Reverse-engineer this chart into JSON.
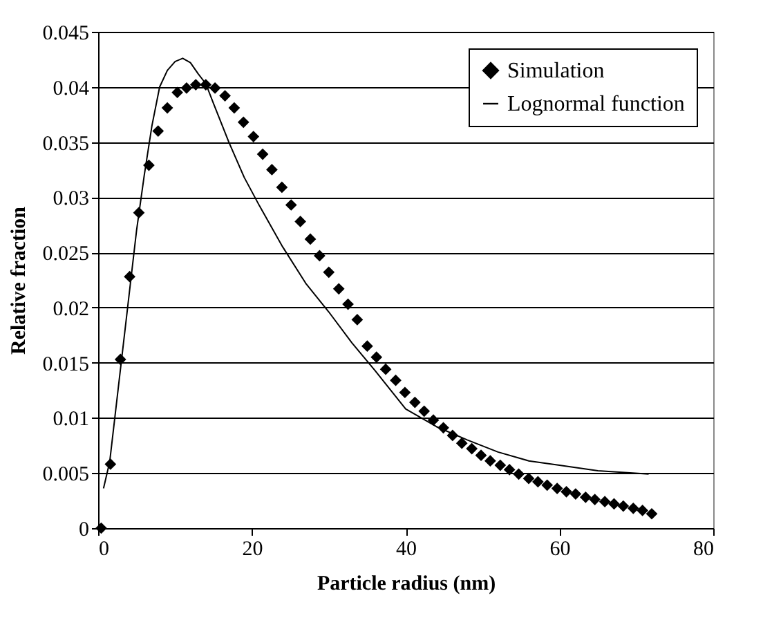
{
  "chart_data": {
    "type": "scatter",
    "xlabel": "Particle radius (nm)",
    "ylabel": "Relative fraction",
    "xlim": [
      0,
      80
    ],
    "xticks": [
      0,
      20,
      40,
      60,
      80
    ],
    "ylim": [
      0,
      0.045
    ],
    "yticks": [
      0,
      0.005,
      0.01,
      0.015,
      0.02,
      0.025,
      0.03,
      0.035,
      0.04,
      0.045
    ],
    "grid": "y",
    "legend": "top right",
    "series": [
      {
        "name": "Simulation",
        "marker": "diamond",
        "color": "#000000",
        "x": [
          0.4,
          1.6,
          2.9,
          4.1,
          5.3,
          6.6,
          7.8,
          9.0,
          10.3,
          11.5,
          12.7,
          14.0,
          15.2,
          16.5,
          17.7,
          18.9,
          20.2,
          21.4,
          22.6,
          23.9,
          25.1,
          26.3,
          27.6,
          28.8,
          30.0,
          31.3,
          32.5,
          33.7,
          35.0,
          36.2,
          37.4,
          38.7,
          39.9,
          41.2,
          42.4,
          43.6,
          44.9,
          46.1,
          47.3,
          48.6,
          49.8,
          51.0,
          52.3,
          53.5,
          54.7,
          56.0,
          57.2,
          58.4,
          59.7,
          60.9,
          62.1,
          63.4,
          64.6,
          65.9,
          67.1,
          68.3,
          69.6,
          70.8,
          72.0
        ],
        "values": [
          0,
          0.0058,
          0.0153,
          0.0228,
          0.0286,
          0.0329,
          0.036,
          0.0381,
          0.0395,
          0.0399,
          0.0402,
          0.0402,
          0.0399,
          0.0392,
          0.0381,
          0.0368,
          0.0355,
          0.0339,
          0.0325,
          0.0309,
          0.0293,
          0.0278,
          0.0262,
          0.0247,
          0.0232,
          0.0217,
          0.0203,
          0.0189,
          0.0165,
          0.0155,
          0.0144,
          0.0134,
          0.0123,
          0.0114,
          0.0106,
          0.0098,
          0.0091,
          0.0084,
          0.0077,
          0.0072,
          0.0066,
          0.0061,
          0.0057,
          0.0053,
          0.0049,
          0.0045,
          0.0042,
          0.0039,
          0.0036,
          0.0033,
          0.0031,
          0.0028,
          0.0026,
          0.0024,
          0.0022,
          0.002,
          0.0018,
          0.0016,
          0.0013
        ]
      },
      {
        "name": "Lognormal function",
        "type": "line",
        "line_style": "solid",
        "color": "#000000",
        "x": [
          0.7,
          1.5,
          2.5,
          3.5,
          4,
          5,
          6,
          7,
          8,
          9,
          10,
          11,
          12,
          13,
          14,
          15,
          17,
          19,
          21,
          24,
          27,
          30,
          33,
          36,
          40,
          44,
          48,
          52,
          56,
          60,
          65,
          71.6
        ],
        "values": [
          0.0036,
          0.006,
          0.012,
          0.018,
          0.021,
          0.027,
          0.032,
          0.0365,
          0.04,
          0.0415,
          0.0423,
          0.0426,
          0.0422,
          0.0412,
          0.0403,
          0.0385,
          0.035,
          0.0318,
          0.0292,
          0.0255,
          0.0222,
          0.0196,
          0.0168,
          0.0143,
          0.0108,
          0.0092,
          0.008,
          0.0069,
          0.0061,
          0.0057,
          0.0052,
          0.0049
        ]
      }
    ]
  }
}
